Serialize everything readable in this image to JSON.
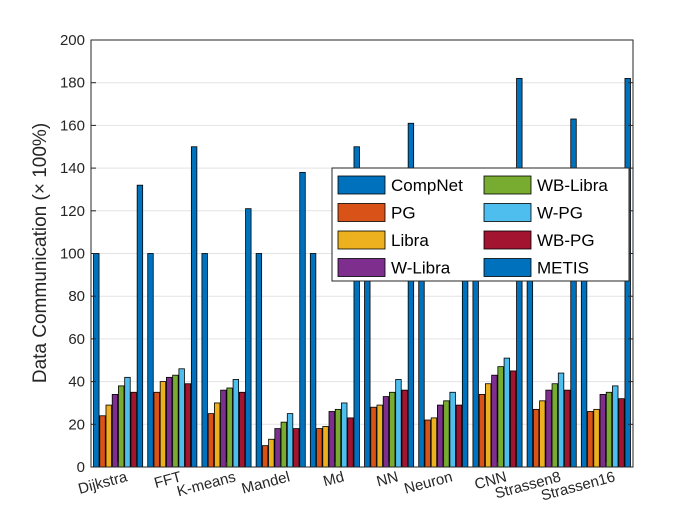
{
  "chart_data": {
    "type": "bar",
    "ylabel": "Data Communication (× 100%)",
    "xlabel": "",
    "title": "",
    "ylim": [
      0,
      200
    ],
    "yticks": [
      0,
      20,
      40,
      60,
      80,
      100,
      120,
      140,
      160,
      180,
      200
    ],
    "grid": true,
    "legend_placement": "inside-right, two columns",
    "categories": [
      "Dijkstra",
      "FFT",
      "K-means",
      "Mandel",
      "Md",
      "NN",
      "Neuron",
      "CNN",
      "Strassen8",
      "Strassen16"
    ],
    "series": [
      {
        "name": "CompNet",
        "color": "#0072BD",
        "values": [
          100,
          100,
          100,
          100,
          100,
          100,
          100,
          100,
          100,
          100
        ]
      },
      {
        "name": "PG",
        "color": "#D95319",
        "values": [
          24,
          35,
          25,
          10,
          18,
          28,
          22,
          34,
          27,
          26
        ]
      },
      {
        "name": "Libra",
        "color": "#EDB120",
        "values": [
          29,
          40,
          30,
          13,
          19,
          29,
          23,
          39,
          31,
          27
        ]
      },
      {
        "name": "W-Libra",
        "color": "#7E2F8E",
        "values": [
          34,
          42,
          36,
          18,
          26,
          33,
          29,
          43,
          36,
          34
        ]
      },
      {
        "name": "WB-Libra",
        "color": "#77AC30",
        "values": [
          38,
          43,
          37,
          21,
          27,
          35,
          31,
          47,
          39,
          35
        ]
      },
      {
        "name": "W-PG",
        "color": "#4DBEEE",
        "values": [
          42,
          46,
          41,
          25,
          30,
          41,
          35,
          51,
          44,
          38
        ]
      },
      {
        "name": "WB-PG",
        "color": "#A2142F",
        "values": [
          35,
          39,
          35,
          18,
          23,
          36,
          29,
          45,
          36,
          32
        ]
      },
      {
        "name": "METIS",
        "color": "#0072BD",
        "values": [
          132,
          150,
          121,
          138,
          150,
          161,
          95,
          182,
          163,
          182
        ]
      }
    ]
  }
}
